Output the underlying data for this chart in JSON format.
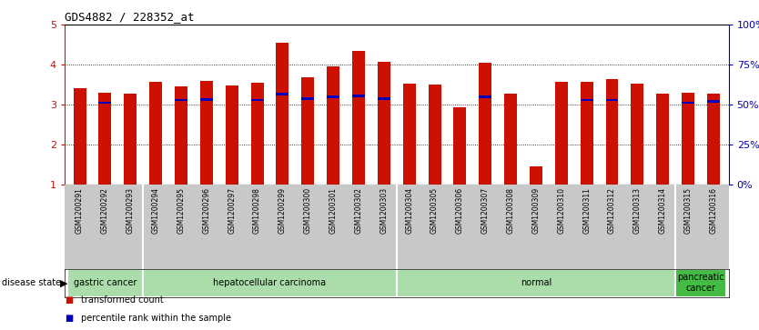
{
  "title": "GDS4882 / 228352_at",
  "samples": [
    "GSM1200291",
    "GSM1200292",
    "GSM1200293",
    "GSM1200294",
    "GSM1200295",
    "GSM1200296",
    "GSM1200297",
    "GSM1200298",
    "GSM1200299",
    "GSM1200300",
    "GSM1200301",
    "GSM1200302",
    "GSM1200303",
    "GSM1200304",
    "GSM1200305",
    "GSM1200306",
    "GSM1200307",
    "GSM1200308",
    "GSM1200309",
    "GSM1200310",
    "GSM1200311",
    "GSM1200312",
    "GSM1200313",
    "GSM1200314",
    "GSM1200315",
    "GSM1200316"
  ],
  "transformed_count": [
    3.42,
    3.3,
    3.28,
    3.57,
    3.45,
    3.6,
    3.48,
    3.55,
    4.55,
    3.68,
    3.97,
    4.35,
    4.07,
    3.52,
    3.5,
    2.93,
    4.04,
    3.27,
    1.45,
    3.57,
    3.58,
    3.65,
    3.52,
    3.27,
    3.3,
    3.28
  ],
  "percentile_rank": [
    null,
    3.05,
    null,
    null,
    3.12,
    3.13,
    null,
    3.12,
    3.27,
    3.15,
    3.2,
    3.22,
    3.15,
    null,
    null,
    null,
    3.2,
    null,
    null,
    null,
    3.12,
    3.12,
    null,
    null,
    3.05,
    3.08
  ],
  "ylim_left": [
    1,
    5
  ],
  "yticks_left": [
    1,
    2,
    3,
    4,
    5
  ],
  "yticks_right_vals": [
    0,
    25,
    50,
    75,
    100
  ],
  "yticks_right_labels": [
    "0%",
    "25%",
    "50%",
    "75%",
    "100%"
  ],
  "bar_color": "#CC1100",
  "percentile_color": "#0000BB",
  "disease_groups": [
    {
      "label": "gastric cancer",
      "start": 0,
      "end": 3,
      "color": "#AADDAA"
    },
    {
      "label": "hepatocellular carcinoma",
      "start": 3,
      "end": 13,
      "color": "#AADDAA"
    },
    {
      "label": "normal",
      "start": 13,
      "end": 24,
      "color": "#AADDAA"
    },
    {
      "label": "pancreatic\ncancer",
      "start": 24,
      "end": 26,
      "color": "#44BB44"
    }
  ],
  "bar_width": 0.5,
  "bg_color": "#FFFFFF",
  "left_color": "#CC1100",
  "right_color": "#0000BB",
  "xtick_bg": "#C8C8C8",
  "group_borders": [
    3,
    13,
    24
  ],
  "legend_items": [
    {
      "color": "#CC1100",
      "label": "transformed count"
    },
    {
      "color": "#0000BB",
      "label": "percentile rank within the sample"
    }
  ]
}
